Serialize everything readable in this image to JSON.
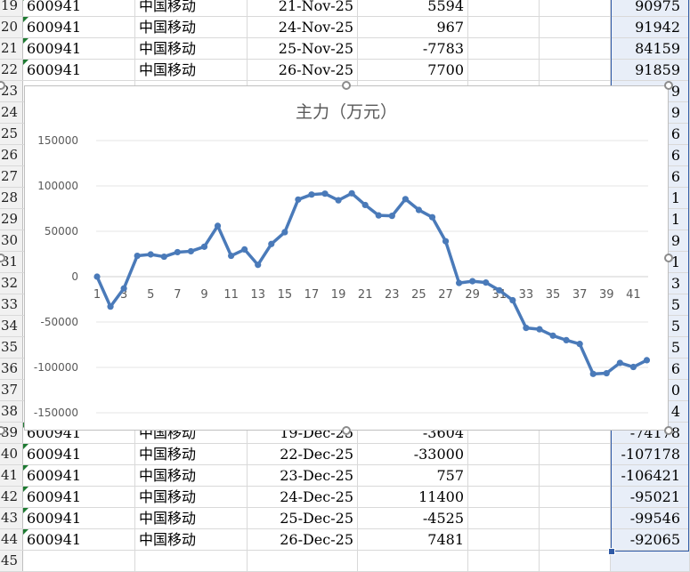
{
  "sheet": {
    "visible_rows": [
      {
        "num": "19",
        "code": "600941",
        "name": "中国移动",
        "date": "21-Nov-25",
        "value": "5594",
        "col_g": "90975"
      },
      {
        "num": "20",
        "code": "600941",
        "name": "中国移动",
        "date": "24-Nov-25",
        "value": "967",
        "col_g": "91942"
      },
      {
        "num": "21",
        "code": "600941",
        "name": "中国移动",
        "date": "25-Nov-25",
        "value": "-7783",
        "col_g": "84159"
      },
      {
        "num": "22",
        "code": "600941",
        "name": "中国移动",
        "date": "26-Nov-25",
        "value": "7700",
        "col_g": "91859"
      },
      {
        "num": "23",
        "col_g": "9"
      },
      {
        "num": "24",
        "col_g": "9"
      },
      {
        "num": "25",
        "col_g": "6"
      },
      {
        "num": "26",
        "col_g": "6"
      },
      {
        "num": "27",
        "col_g": "6"
      },
      {
        "num": "28",
        "col_g": "1"
      },
      {
        "num": "29",
        "col_g": "1"
      },
      {
        "num": "30",
        "col_g": "9"
      },
      {
        "num": "31",
        "col_g": "1"
      },
      {
        "num": "32",
        "col_g": "3"
      },
      {
        "num": "33",
        "col_g": "5"
      },
      {
        "num": "34",
        "col_g": "5"
      },
      {
        "num": "35",
        "col_g": "5"
      },
      {
        "num": "36",
        "col_g": "6"
      },
      {
        "num": "37",
        "col_g": "0"
      },
      {
        "num": "38",
        "col_g": "4"
      },
      {
        "num": "39",
        "code": "600941",
        "name": "中国移动",
        "date": "19-Dec-25",
        "value": "-3604",
        "col_g": "-74178"
      },
      {
        "num": "40",
        "code": "600941",
        "name": "中国移动",
        "date": "22-Dec-25",
        "value": "-33000",
        "col_g": "-107178"
      },
      {
        "num": "41",
        "code": "600941",
        "name": "中国移动",
        "date": "23-Dec-25",
        "value": "757",
        "col_g": "-106421"
      },
      {
        "num": "42",
        "code": "600941",
        "name": "中国移动",
        "date": "24-Dec-25",
        "value": "11400",
        "col_g": "-95021"
      },
      {
        "num": "43",
        "code": "600941",
        "name": "中国移动",
        "date": "25-Dec-25",
        "value": "-4525",
        "col_g": "-99546"
      },
      {
        "num": "44",
        "code": "600941",
        "name": "中国移动",
        "date": "26-Dec-25",
        "value": "7481",
        "col_g": "-92065"
      },
      {
        "num": "45"
      }
    ]
  },
  "chart_data": {
    "type": "line",
    "title": "主力（万元）",
    "xlabel": "",
    "ylabel": "",
    "x": [
      1,
      2,
      3,
      4,
      5,
      6,
      7,
      8,
      9,
      10,
      11,
      12,
      13,
      14,
      15,
      16,
      17,
      18,
      19,
      20,
      21,
      22,
      23,
      24,
      25,
      26,
      27,
      28,
      29,
      30,
      31,
      32,
      33,
      34,
      35,
      36,
      37,
      38,
      39,
      40,
      41,
      42
    ],
    "x_tick_labels": [
      "1",
      "3",
      "5",
      "7",
      "9",
      "11",
      "13",
      "15",
      "17",
      "19",
      "21",
      "23",
      "25",
      "27",
      "29",
      "31",
      "33",
      "35",
      "37",
      "39",
      "41"
    ],
    "y_tick_labels": [
      "150000",
      "100000",
      "50000",
      "0",
      "-50000",
      "-100000",
      "-150000"
    ],
    "ylim": [
      -150000,
      150000
    ],
    "grid": true,
    "legend": "none",
    "color": "#4a7ab9",
    "series": [
      {
        "values": [
          0,
          -33000,
          -13000,
          23000,
          24500,
          22000,
          27000,
          28000,
          33000,
          56000,
          23000,
          30000,
          13000,
          36000,
          49000,
          85000,
          90500,
          91500,
          84159,
          91859,
          79000,
          67500,
          67000,
          85500,
          73500,
          65500,
          39000,
          -7000,
          -5000,
          -6500,
          -15000,
          -26000,
          -56500,
          -58000,
          -65000,
          -70000,
          -74178,
          -107178,
          -106421,
          -95021,
          -99546,
          -92065
        ]
      }
    ]
  }
}
